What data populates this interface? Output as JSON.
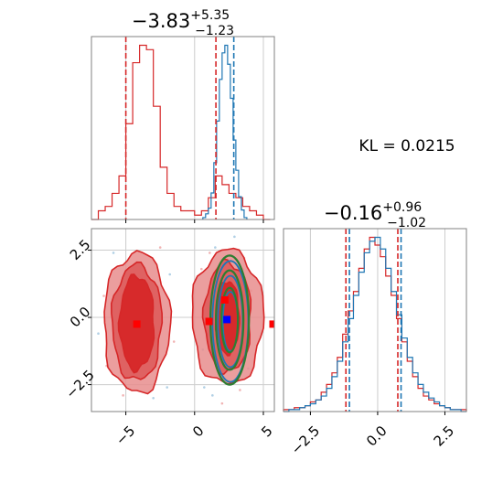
{
  "chart_data": {
    "type": "corner",
    "colors": {
      "red": "#d62728",
      "blue": "#1f77b4",
      "green": "#2e7d32",
      "red_fill": "#e88d8d",
      "grid": "#cccccc",
      "axes": "#808080"
    },
    "kl_label": "KL = 0.0215",
    "param1": {
      "title": {
        "median": "−3.83",
        "plus": "+5.35",
        "minus": "−1.23"
      },
      "xlim": [
        -7.5,
        5.8
      ],
      "xticks": [
        -5,
        0,
        5
      ],
      "xtick_labels": [
        "−5",
        "0",
        "5"
      ],
      "quantiles": {
        "red": [
          -5.0,
          1.55
        ],
        "blue": [
          2.85
        ]
      },
      "hist_red": {
        "bin_edges": [
          -7.5,
          -7.0,
          -6.5,
          -6.0,
          -5.5,
          -5.0,
          -4.5,
          -4.0,
          -3.5,
          -3.0,
          -2.5,
          -2.0,
          -1.5,
          -1.0,
          -0.5,
          0.0,
          0.5,
          1.0,
          1.5,
          2.0,
          2.5,
          3.0,
          3.5,
          4.0,
          4.5,
          5.0,
          5.5
        ],
        "counts": [
          0,
          2,
          3,
          6,
          10,
          22,
          36,
          40,
          39,
          26,
          12,
          6,
          3,
          2,
          2,
          1,
          2,
          5,
          10,
          8,
          6,
          5,
          3,
          2,
          1,
          0
        ]
      },
      "hist_blue": {
        "bin_edges": [
          0.6,
          0.8,
          1.0,
          1.2,
          1.4,
          1.6,
          1.8,
          2.0,
          2.2,
          2.4,
          2.6,
          2.8,
          3.0,
          3.2,
          3.4,
          3.6,
          3.8
        ],
        "counts": [
          1,
          3,
          6,
          14,
          30,
          52,
          74,
          88,
          92,
          82,
          64,
          42,
          26,
          12,
          5,
          1
        ]
      }
    },
    "param2": {
      "title": {
        "median": "−0.16",
        "plus": "+0.96",
        "minus": "−1.02"
      },
      "xlim": [
        -3.5,
        3.3
      ],
      "xticks": [
        -2.5,
        0.0,
        2.5
      ],
      "xtick_labels": [
        "−2.5",
        "0.0",
        "2.5"
      ],
      "quantiles": {
        "red": [
          -1.18,
          0.75
        ],
        "blue": [
          -1.05,
          0.87
        ]
      },
      "hist_red": {
        "bin_edges": [
          -3.5,
          -3.3,
          -3.1,
          -2.9,
          -2.7,
          -2.5,
          -2.3,
          -2.1,
          -1.9,
          -1.7,
          -1.5,
          -1.3,
          -1.1,
          -0.9,
          -0.7,
          -0.5,
          -0.3,
          -0.1,
          0.1,
          0.3,
          0.5,
          0.7,
          0.9,
          1.1,
          1.3,
          1.5,
          1.7,
          1.9,
          2.1,
          2.3,
          2.5,
          2.7,
          2.9,
          3.1,
          3.3
        ],
        "counts": [
          1,
          1,
          2,
          2,
          3,
          5,
          6,
          10,
          14,
          20,
          28,
          40,
          52,
          62,
          74,
          84,
          90,
          86,
          80,
          70,
          60,
          48,
          36,
          26,
          18,
          12,
          8,
          6,
          4,
          3,
          2,
          1,
          1,
          1
        ]
      },
      "hist_blue": {
        "bin_edges": [
          -3.5,
          -3.3,
          -3.1,
          -2.9,
          -2.7,
          -2.5,
          -2.3,
          -2.1,
          -1.9,
          -1.7,
          -1.5,
          -1.3,
          -1.1,
          -0.9,
          -0.7,
          -0.5,
          -0.3,
          -0.1,
          0.1,
          0.3,
          0.5,
          0.7,
          0.9,
          1.1,
          1.3,
          1.5,
          1.7,
          1.9,
          2.1,
          2.3,
          2.5,
          2.7,
          2.9,
          3.1,
          3.3
        ],
        "counts": [
          0,
          1,
          1,
          2,
          3,
          4,
          6,
          8,
          12,
          18,
          26,
          36,
          48,
          60,
          72,
          82,
          88,
          90,
          84,
          74,
          62,
          50,
          38,
          28,
          20,
          14,
          10,
          7,
          5,
          3,
          2,
          1,
          1,
          0
        ]
      }
    },
    "joint": {
      "ylim": [
        -3.5,
        3.3
      ],
      "yticks": [
        -2.5,
        0.0,
        2.5
      ],
      "ytick_labels": [
        "−2.5",
        "0.0",
        "2.5"
      ],
      "red_left_mode": {
        "cx": -4.2,
        "cy": -0.2,
        "levels": [
          {
            "rx": 2.4,
            "ry": 2.6
          },
          {
            "rx": 1.8,
            "ry": 2.15
          },
          {
            "rx": 1.25,
            "ry": 1.75
          }
        ]
      },
      "red_right_mode": {
        "cx": 2.4,
        "cy": 0.0,
        "levels": [
          {
            "rx": 2.6,
            "ry": 2.5
          },
          {
            "rx": 1.7,
            "ry": 2.05
          },
          {
            "rx": 0.85,
            "ry": 1.35
          }
        ]
      },
      "blue_ellipses": {
        "cx": 2.6,
        "cy": -0.15,
        "levels": [
          {
            "rx": 1.3,
            "ry": 2.25
          },
          {
            "rx": 0.9,
            "ry": 1.7
          },
          {
            "rx": 0.55,
            "ry": 1.1
          }
        ]
      },
      "green_ellipses": {
        "cx": 2.55,
        "cy": -0.1,
        "levels": [
          {
            "rx": 1.4,
            "ry": 2.4
          },
          {
            "rx": 1.0,
            "ry": 1.85
          },
          {
            "rx": 0.6,
            "ry": 1.2
          }
        ]
      },
      "red_markers": [
        [
          -4.2,
          -0.25
        ],
        [
          1.05,
          -0.15
        ],
        [
          2.2,
          0.65
        ],
        [
          5.7,
          -0.25
        ]
      ],
      "blue_markers": [
        [
          2.35,
          -0.08
        ]
      ],
      "scatter_points": [
        [
          0.5,
          1.8
        ],
        [
          0.7,
          -2.6
        ],
        [
          1.1,
          2.4
        ],
        [
          1.3,
          -2.9
        ],
        [
          3.6,
          2.2
        ],
        [
          3.9,
          -1.9
        ],
        [
          4.1,
          1.0
        ],
        [
          0.8,
          0.2
        ],
        [
          3.8,
          -0.6
        ],
        [
          1.5,
          2.6
        ],
        [
          3.3,
          -2.7
        ],
        [
          0.6,
          -1.2
        ],
        [
          4.0,
          0.4
        ],
        [
          1.2,
          -2.2
        ],
        [
          3.5,
          1.8
        ],
        [
          -1.8,
          1.6
        ],
        [
          -6.6,
          0.8
        ],
        [
          -2.0,
          -2.6
        ],
        [
          -6.4,
          -1.8
        ],
        [
          -5.9,
          2.4
        ],
        [
          -2.5,
          2.6
        ],
        [
          -7.0,
          -0.6
        ],
        [
          -1.5,
          -0.9
        ],
        [
          -3.0,
          -3.0
        ],
        [
          -5.2,
          -2.9
        ],
        [
          2.9,
          3.0
        ],
        [
          2.0,
          -3.2
        ]
      ]
    }
  }
}
